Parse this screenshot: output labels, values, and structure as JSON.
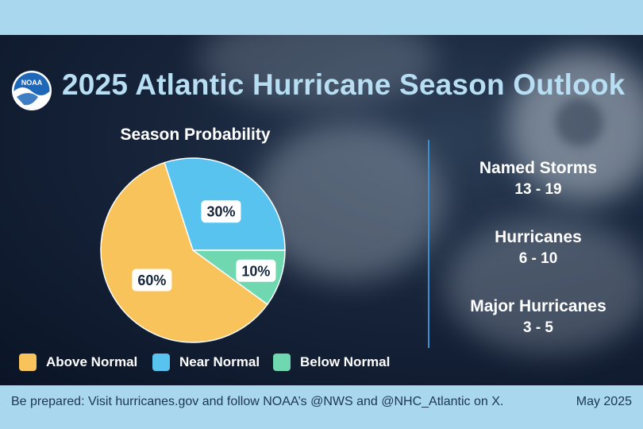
{
  "header": {
    "title": "2025 Atlantic Hurricane Season Outlook",
    "logo_text": "NOAA"
  },
  "chart_data": {
    "type": "pie",
    "title": "Season Probability",
    "categories": [
      "Above Normal",
      "Near Normal",
      "Below Normal"
    ],
    "values": [
      60,
      30,
      10
    ],
    "value_labels": [
      "60%",
      "30%",
      "10%"
    ],
    "colors": [
      "#f8c35a",
      "#58c3ef",
      "#6fd8b1"
    ],
    "legend_position": "bottom"
  },
  "stats": [
    {
      "label": "Named Storms",
      "value": "13 - 19"
    },
    {
      "label": "Hurricanes",
      "value": "6 - 10"
    },
    {
      "label": "Major Hurricanes",
      "value": "3 - 5"
    }
  ],
  "footer": {
    "text": "Be prepared: Visit hurricanes.gov and follow NOAA’s @NWS and @NHC_Atlantic on X.",
    "date": "May 2025"
  },
  "colors": {
    "band": "#a9d8ee",
    "title": "#b7def2",
    "divider": "#3a8fd0",
    "footer_text": "#1d3554"
  }
}
